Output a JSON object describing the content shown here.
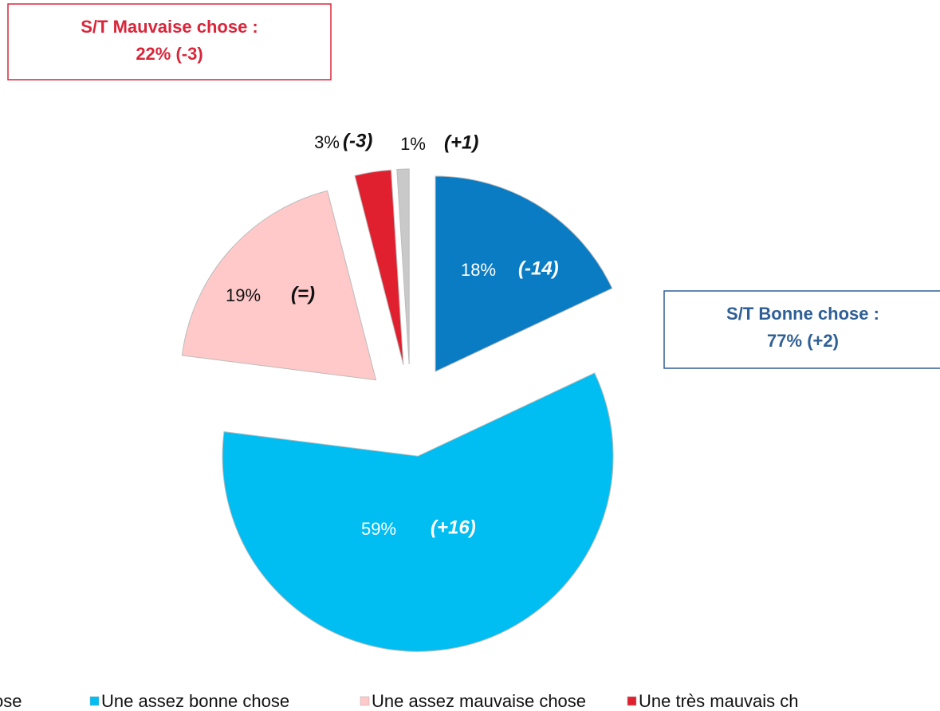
{
  "chart_data": {
    "type": "pie",
    "labels": [
      "ose",
      "Une assez bonne chose",
      "Une assez mauvaise chose",
      "Une très mauvais ch",
      null
    ],
    "values": [
      18,
      59,
      19,
      3,
      1
    ],
    "value_labels": [
      "18%",
      "59%",
      "19%",
      "3%",
      "1%"
    ],
    "changes": [
      "(-14)",
      "(+16)",
      "(=)",
      "(-3)",
      "(+1)"
    ],
    "colors": [
      "#0a7cc4",
      "#00bdf2",
      "#ffc9c9",
      "#e0202f",
      "#c9c9c9"
    ],
    "annotations": [
      {
        "lines": [
          "S/T Mauvaise chose :",
          "22% (-3)"
        ],
        "color": "#d9263a"
      },
      {
        "lines": [
          "S/T Bonne chose :",
          "77% (+2)"
        ],
        "color": "#2e5f96"
      }
    ]
  }
}
